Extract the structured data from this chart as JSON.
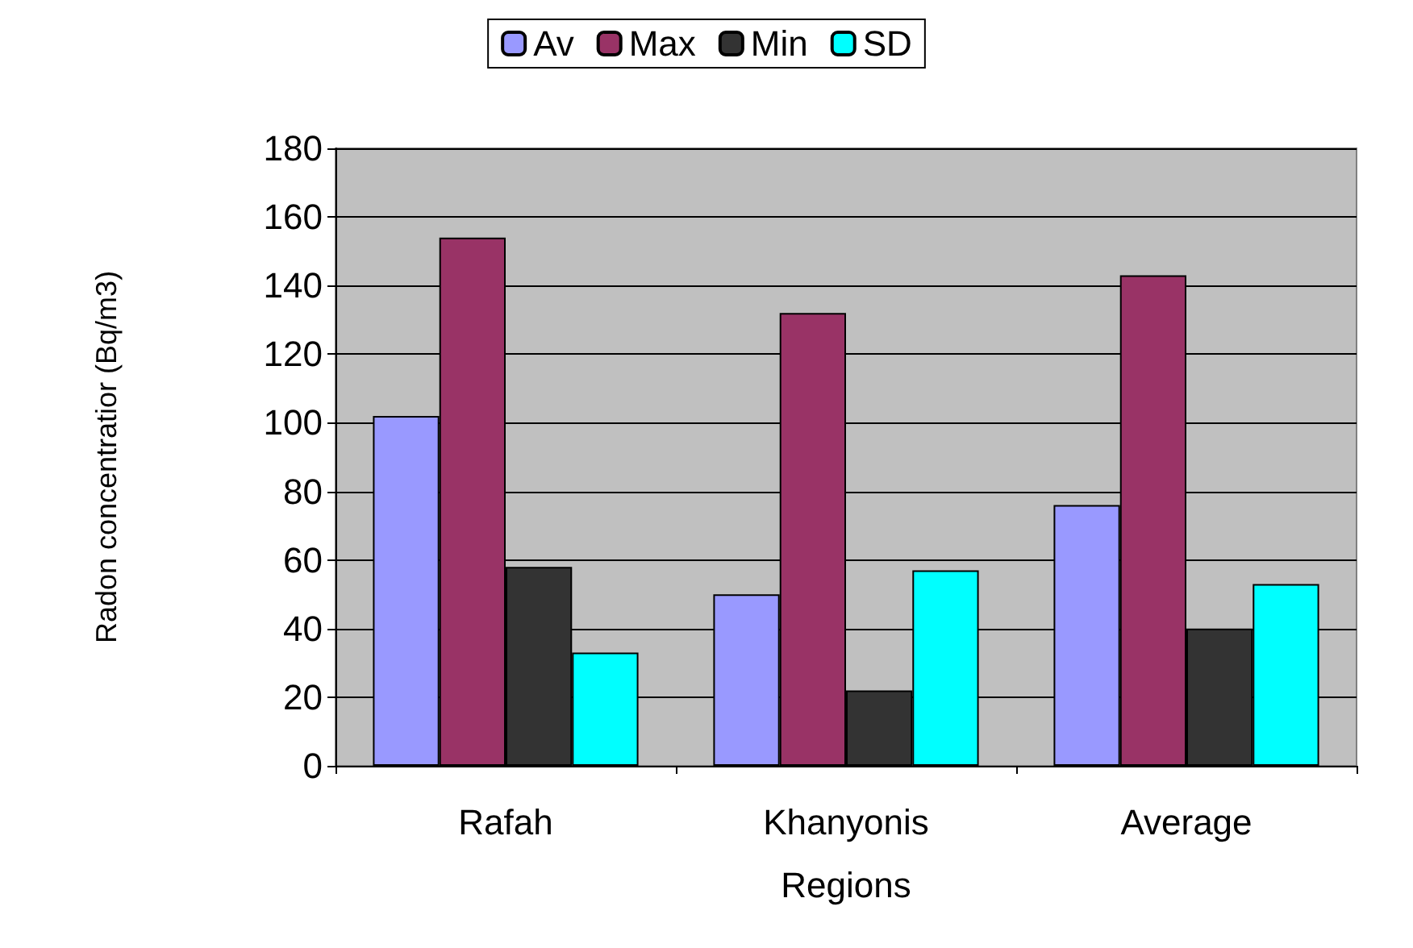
{
  "chart_data": {
    "type": "bar",
    "xlabel": "Regions",
    "ylabel": "Radon concentratior (Bq/m3)",
    "categories": [
      "Rafah",
      "Khanyonis",
      "Average"
    ],
    "series": [
      {
        "name": "Av",
        "color": "#9999ff",
        "values": [
          102,
          50,
          76
        ]
      },
      {
        "name": "Max",
        "color": "#993366",
        "values": [
          154,
          132,
          143
        ]
      },
      {
        "name": "Min",
        "color": "#333333",
        "values": [
          58,
          22,
          40
        ]
      },
      {
        "name": "SD",
        "color": "#00ffff",
        "values": [
          33,
          57,
          53
        ]
      }
    ],
    "ylim": [
      0,
      180
    ],
    "yticks": [
      0,
      20,
      40,
      60,
      80,
      100,
      120,
      140,
      160,
      180
    ],
    "grid": "y",
    "legend": "top"
  }
}
